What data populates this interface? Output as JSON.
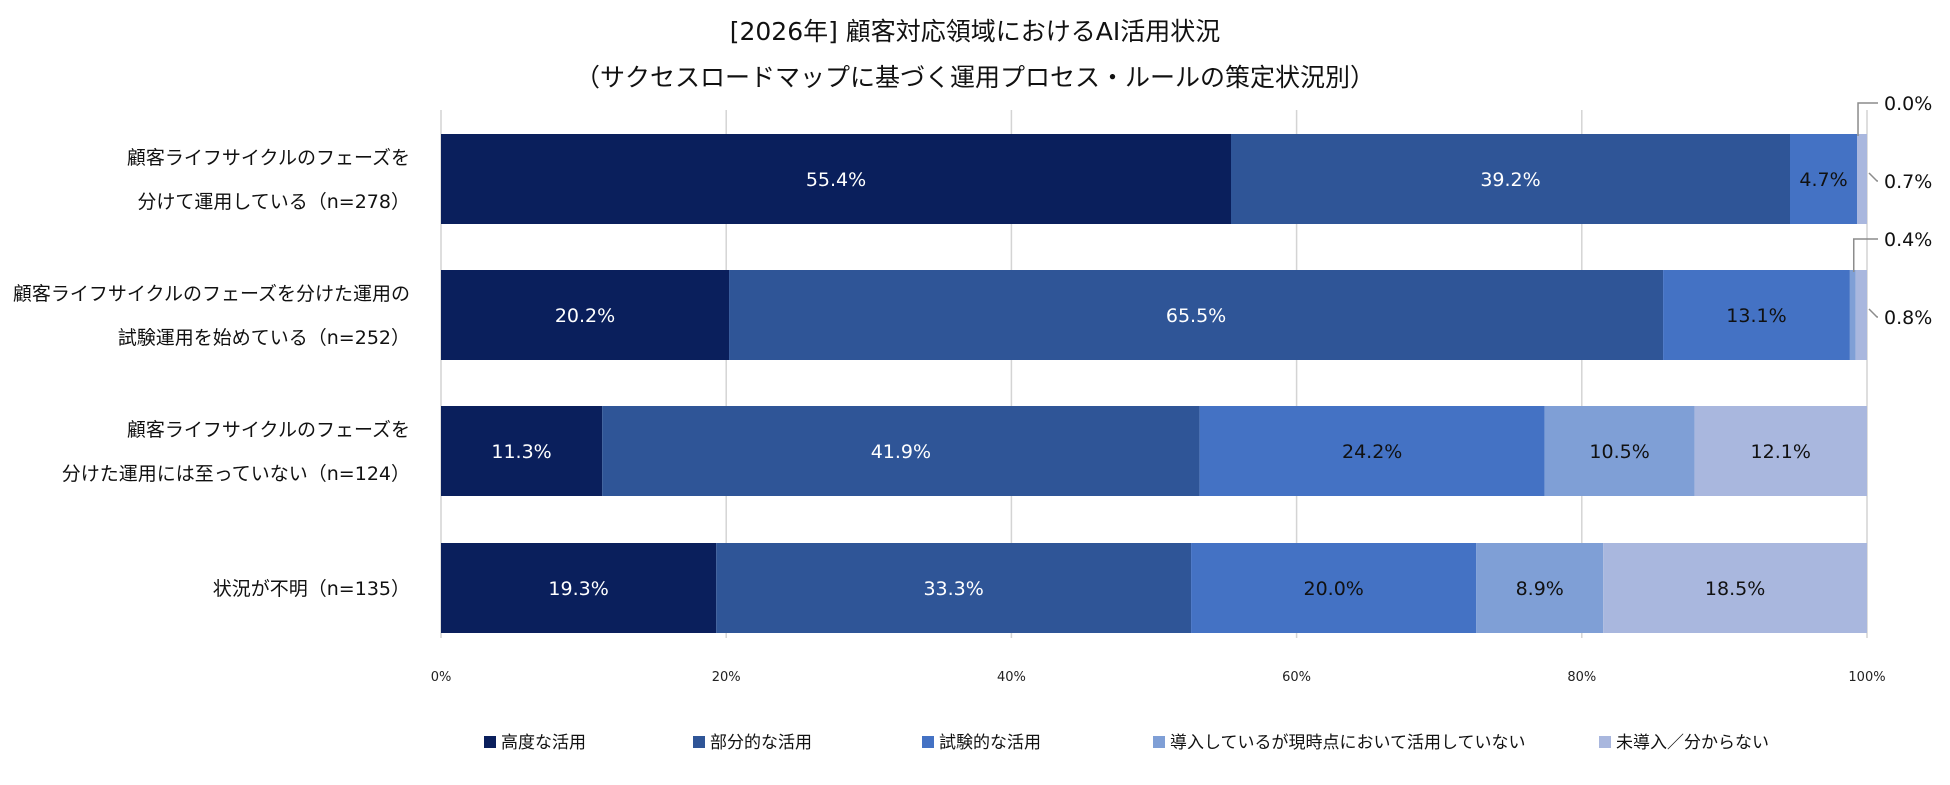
{
  "chart_data": {
    "type": "bar",
    "orientation": "horizontal",
    "stacked": true,
    "title_lines": [
      "[2026年] 顧客対応領域におけるAI活用状況",
      "（サクセスロードマップに基づく運用プロセス・ルールの策定状況別）"
    ],
    "categories": [
      [
        "顧客ライフサイクルのフェーズを",
        "分けて運用している（n=278）"
      ],
      [
        "顧客ライフサイクルのフェーズを分けた運用の",
        "試験運用を始めている（n=252）"
      ],
      [
        "顧客ライフサイクルのフェーズを",
        "分けた運用には至っていない（n=124）"
      ],
      [
        "状況が不明（n=135）"
      ]
    ],
    "series": [
      {
        "name": "高度な活用",
        "color": "#0a1f5c",
        "label_color": "#ffffff",
        "values": [
          55.4,
          20.2,
          11.3,
          19.3
        ],
        "labels": [
          "55.4%",
          "20.2%",
          "11.3%",
          "19.3%"
        ]
      },
      {
        "name": "部分的な活用",
        "color": "#2f5597",
        "label_color": "#ffffff",
        "values": [
          39.2,
          65.5,
          41.9,
          33.3
        ],
        "labels": [
          "39.2%",
          "65.5%",
          "41.9%",
          "33.3%"
        ]
      },
      {
        "name": "試験的な活用",
        "color": "#4472c4",
        "label_color": "#111111",
        "values": [
          4.7,
          13.1,
          24.2,
          20.0
        ],
        "labels": [
          "4.7%",
          "13.1%",
          "24.2%",
          "20.0%"
        ]
      },
      {
        "name": "導入しているが現時点において活用していない",
        "color": "#7f9fd6",
        "label_color": "#111111",
        "values": [
          0.0,
          0.4,
          10.5,
          8.9
        ],
        "labels": [
          "0.0%",
          "0.4%",
          "10.5%",
          "8.9%"
        ]
      },
      {
        "name": "未導入／分からない",
        "color": "#a9b7de",
        "label_color": "#111111",
        "values": [
          0.7,
          0.8,
          12.1,
          18.5
        ],
        "labels": [
          "0.7%",
          "0.8%",
          "12.1%",
          "18.5%"
        ]
      }
    ],
    "callout_series": [
      3,
      4
    ],
    "callout_categories": [
      0,
      1
    ],
    "xlim": [
      0,
      100
    ],
    "xticks": [
      "0%",
      "20%",
      "40%",
      "60%",
      "80%",
      "100%"
    ],
    "grid": true,
    "legend_position": "bottom"
  }
}
